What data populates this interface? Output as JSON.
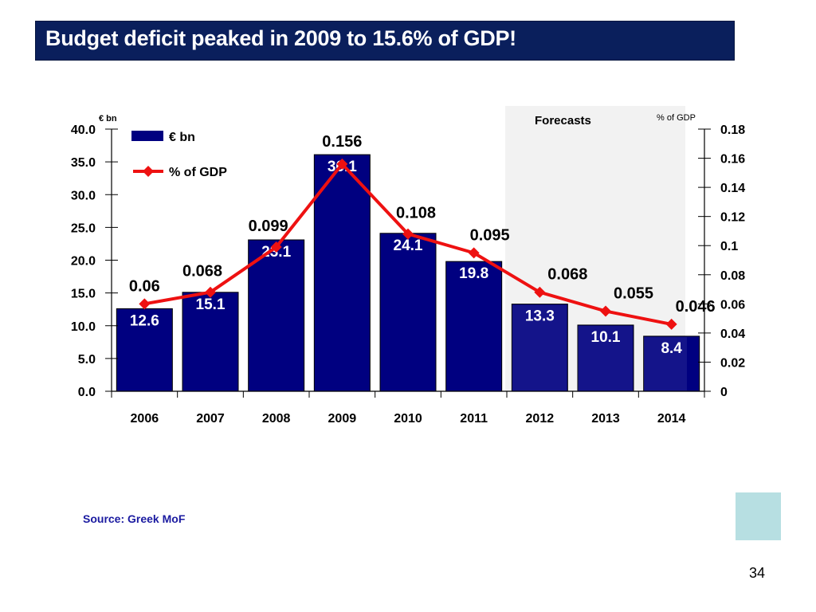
{
  "slide": {
    "title": "Budget deficit peaked in 2009 to 15.6% of GDP!",
    "source": "Source: Greek MoF",
    "page_number": "34"
  },
  "colors": {
    "title_bg": "#0a1f5c",
    "bar": "#000080",
    "bar_forecast": "#1a1a85",
    "line": "#ee1111",
    "forecast_bg": "#f2f2f2",
    "source_text": "#1a1aa0",
    "corner_box": "#b7dfe2"
  },
  "chart_data": {
    "type": "bar",
    "title": "",
    "categories": [
      "2006",
      "2007",
      "2008",
      "2009",
      "2010",
      "2011",
      "2012",
      "2013",
      "2014"
    ],
    "series": [
      {
        "name": "€ bn",
        "kind": "bar",
        "axis": "left",
        "values": [
          12.6,
          15.1,
          23.1,
          36.1,
          24.1,
          19.8,
          13.3,
          10.1,
          8.4
        ],
        "labels": [
          "12.6",
          "15.1",
          "23.1",
          "36.1",
          "24.1",
          "19.8",
          "13.3",
          "10.1",
          "8.4"
        ]
      },
      {
        "name": "% of GDP",
        "kind": "line",
        "axis": "right",
        "values": [
          0.06,
          0.068,
          0.099,
          0.156,
          0.108,
          0.095,
          0.068,
          0.055,
          0.046
        ],
        "labels": [
          "0.06",
          "0.068",
          "0.099",
          "0.156",
          "0.108",
          "0.095",
          "0.068",
          "0.055",
          "0.046"
        ]
      }
    ],
    "left_axis": {
      "label": "€ bn",
      "range": [
        0,
        40
      ],
      "ticks": [
        "0.0",
        "5.0",
        "10.0",
        "15.0",
        "20.0",
        "25.0",
        "30.0",
        "35.0",
        "40.0"
      ]
    },
    "right_axis": {
      "label": "% of GDP",
      "range": [
        0,
        0.18
      ],
      "ticks": [
        "0",
        "0.02",
        "0.04",
        "0.06",
        "0.08",
        "0.1",
        "0.12",
        "0.14",
        "0.16",
        "0.18"
      ]
    },
    "forecast": {
      "label": "Forecasts",
      "from_category": "2012",
      "to_category": "2014"
    },
    "legend": {
      "position": "top-left",
      "entries": [
        "€ bn",
        "% of GDP"
      ]
    },
    "grid": false
  }
}
